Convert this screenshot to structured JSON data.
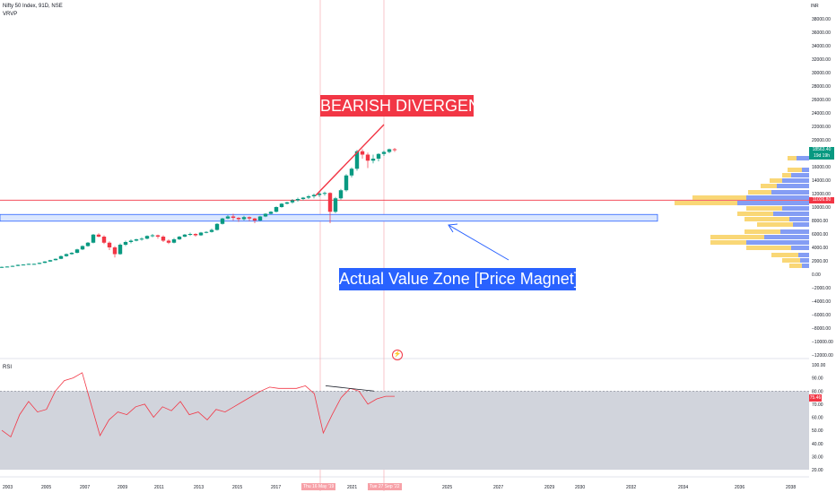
{
  "header": {
    "symbol": "Nifty 50 Index, 91D, NSE",
    "indicator": "VRVP",
    "currency": "INR"
  },
  "rsi_pane": {
    "name": "RSI",
    "current_label": "75.46"
  },
  "annotations": {
    "bearish": "BEARISH DIVERGENCE",
    "value_zone": "Actual Value Zone [Price Magnet]"
  },
  "price_tags": {
    "last": "18563.40",
    "countdown": "19d 19h",
    "level": "11026.80"
  },
  "date_tags": {
    "first": "Thu 16 May '19",
    "second": "Tue 27 Sep '22"
  },
  "colors": {
    "up": "#089981",
    "down": "#f23645",
    "zone": "#2962ff",
    "volume_up": "#f7c948",
    "volume_down": "#5b7cf0"
  },
  "chart_data": {
    "type": "candlestick",
    "price_axis": [
      "38000.00",
      "36000.00",
      "34000.00",
      "32000.00",
      "30000.00",
      "28000.00",
      "26000.00",
      "24000.00",
      "22000.00",
      "20000.00",
      "18000.00",
      "16000.00",
      "14000.00",
      "12000.00",
      "10000.00",
      "8000.00",
      "6000.00",
      "4000.00",
      "2000.00",
      "0.00",
      "−2000.00",
      "−4000.00",
      "−6000.00",
      "−8000.00",
      "−10000.00",
      "−12000.00"
    ],
    "rsi_axis": [
      "100.00",
      "90.00",
      "80.00",
      "70.00",
      "60.00",
      "50.00",
      "40.00",
      "30.00",
      "20.00"
    ],
    "time_axis": [
      "2003",
      "2005",
      "2007",
      "2009",
      "2011",
      "2013",
      "2015",
      "2017",
      "2021",
      "2025",
      "2027",
      "2029",
      "2030",
      "2032",
      "2034",
      "2036",
      "2038"
    ],
    "value_zone": [
      7900,
      8900
    ],
    "level": 11026.8,
    "last": 18563.4,
    "rsi": [
      50,
      45,
      62,
      72,
      64,
      66,
      80,
      88,
      90,
      94,
      70,
      46,
      58,
      64,
      62,
      68,
      70,
      60,
      68,
      65,
      72,
      62,
      64,
      58,
      66,
      64,
      68,
      72,
      76,
      80,
      83,
      82,
      82,
      82,
      84,
      78,
      48,
      62,
      75,
      82,
      80,
      70,
      74,
      76,
      76
    ]
  }
}
